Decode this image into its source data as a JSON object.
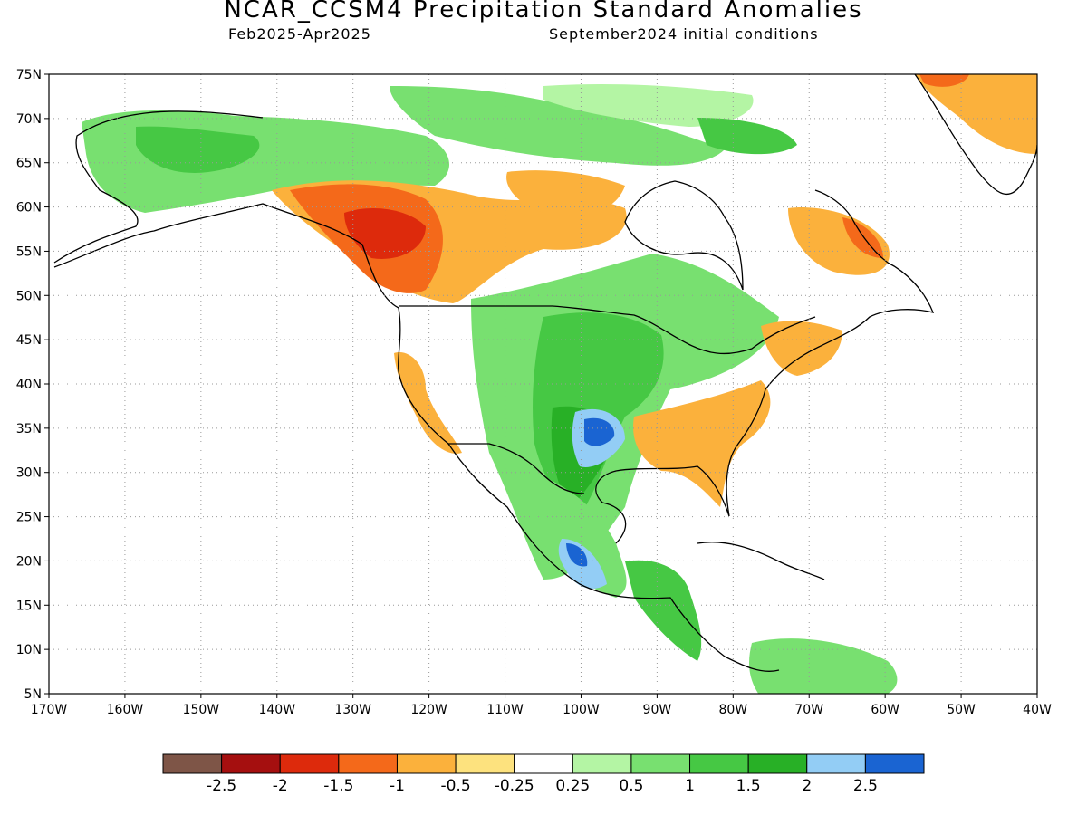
{
  "title": "NCAR_CCSM4 Precipitation Standard Anomalies",
  "subtitle_left": "Feb2025-Apr2025",
  "subtitle_right": "September2024 initial conditions",
  "lat_ticks": [
    "75N",
    "70N",
    "65N",
    "60N",
    "55N",
    "50N",
    "45N",
    "40N",
    "35N",
    "30N",
    "25N",
    "20N",
    "15N",
    "10N",
    "5N"
  ],
  "lon_ticks": [
    "170W",
    "160W",
    "150W",
    "140W",
    "130W",
    "120W",
    "110W",
    "100W",
    "90W",
    "80W",
    "70W",
    "60W",
    "50W",
    "40W"
  ],
  "colorbar": {
    "colors": [
      "#7e5547",
      "#a50f0f",
      "#dd2a0c",
      "#f4691a",
      "#fbb13c",
      "#fde27e",
      "#ffffff",
      "#b4f5a4",
      "#78e070",
      "#46c844",
      "#28b026",
      "#93cdf5",
      "#1a64d2"
    ],
    "labels": [
      "-2.5",
      "-2",
      "-1.5",
      "-1",
      "-0.5",
      "-0.25",
      "0.25",
      "0.5",
      "1",
      "1.5",
      "2",
      "2.5"
    ]
  },
  "colors": {
    "land_outline": "#000000",
    "grid": "#999999",
    "frame": "#000000"
  }
}
